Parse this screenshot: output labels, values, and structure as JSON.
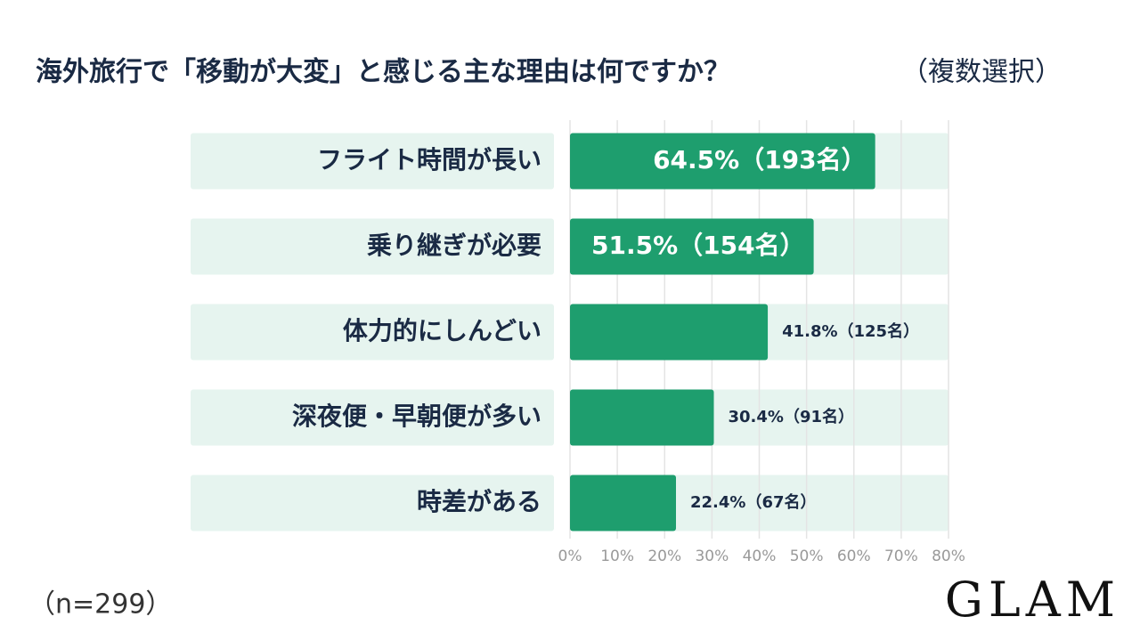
{
  "chart_data": {
    "type": "barh",
    "title": "海外旅行で「移動が大変」と感じる主な理由は何ですか？",
    "subtitle": "（複数選択）",
    "categories": [
      "フライト時間が長い",
      "乗り継ぎが必要",
      "体力的にしんどい",
      "深夜便・早朝便が多い",
      "時差がある"
    ],
    "values": [
      64.5,
      51.5,
      41.8,
      30.4,
      22.4
    ],
    "value_labels": [
      "64.5%（193名）",
      "51.5%（154名）",
      "41.8%（125名）",
      "30.4%（91名）",
      "22.4%（67名）"
    ],
    "color": "#1e9e6e",
    "xlim": [
      0,
      80
    ],
    "xticks": [
      {
        "value": 0,
        "label": "0%"
      },
      {
        "value": 10,
        "label": "10%"
      },
      {
        "value": 20,
        "label": "20%"
      },
      {
        "value": 30,
        "label": "30%"
      },
      {
        "value": 40,
        "label": "40%"
      },
      {
        "value": 50,
        "label": "50%"
      },
      {
        "value": 60,
        "label": "60%"
      },
      {
        "value": 70,
        "label": "70%"
      },
      {
        "value": 80,
        "label": "80%"
      }
    ],
    "grid": true,
    "note": "（n=299）",
    "brand": "GLAM"
  }
}
